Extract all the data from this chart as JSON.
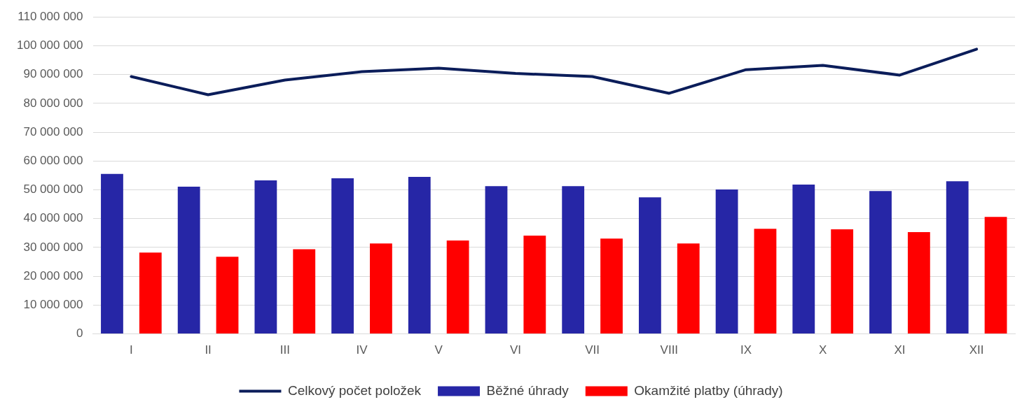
{
  "chart_data": {
    "type": "bar",
    "categories": [
      "I",
      "II",
      "III",
      "IV",
      "V",
      "VI",
      "VII",
      "VIII",
      "IX",
      "X",
      "XI",
      "XII"
    ],
    "series": [
      {
        "name": "Běžné úhrady",
        "color": "#2626a6",
        "values": [
          55500000,
          51100000,
          53300000,
          54000000,
          54500000,
          51300000,
          51300000,
          47400000,
          50100000,
          51800000,
          49600000,
          53000000
        ]
      },
      {
        "name": "Okamžité platby (úhrady)",
        "color": "#ff0000",
        "values": [
          28200000,
          26800000,
          29400000,
          31400000,
          32400000,
          34100000,
          33100000,
          31400000,
          36500000,
          36300000,
          35300000,
          40600000
        ]
      },
      {
        "name": "Celkový počet položek",
        "type": "line",
        "color": "#0b1d5a",
        "values": [
          89300000,
          83000000,
          88100000,
          91000000,
          92200000,
          90400000,
          89300000,
          83500000,
          91700000,
          93200000,
          89800000,
          98800000
        ]
      }
    ],
    "ylim": [
      0,
      110000000
    ],
    "yticks": [
      {
        "value": 0,
        "label": "0"
      },
      {
        "value": 10000000,
        "label": "10 000 000"
      },
      {
        "value": 20000000,
        "label": "20 000 000"
      },
      {
        "value": 30000000,
        "label": "30 000 000"
      },
      {
        "value": 40000000,
        "label": "40 000 000"
      },
      {
        "value": 50000000,
        "label": "50 000 000"
      },
      {
        "value": 60000000,
        "label": "60 000 000"
      },
      {
        "value": 70000000,
        "label": "70 000 000"
      },
      {
        "value": 80000000,
        "label": "80 000 000"
      },
      {
        "value": 90000000,
        "label": "90 000 000"
      },
      {
        "value": 100000000,
        "label": "100 000 000"
      },
      {
        "value": 110000000,
        "label": "110 000 000"
      }
    ],
    "grid": "y",
    "legend": "bottom",
    "marker": "none",
    "line_style": "solid"
  }
}
